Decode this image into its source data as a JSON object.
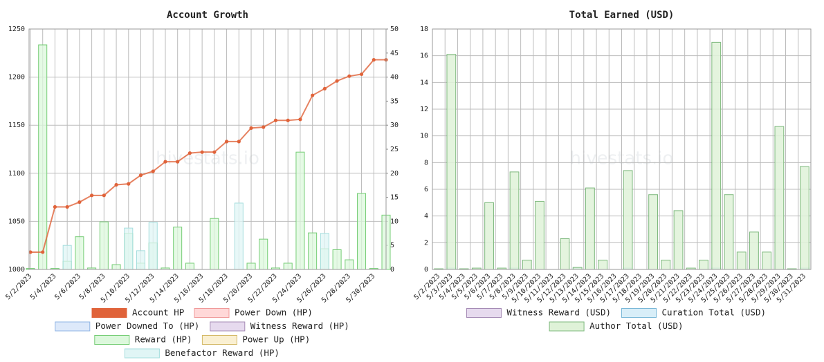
{
  "chart_data": [
    {
      "type": "line",
      "title": "Account Growth",
      "watermark": "hivestats.io",
      "categories": [
        "5/2/2023",
        null,
        "5/4/2023",
        null,
        "5/6/2023",
        null,
        "5/8/2023",
        null,
        "5/10/2023",
        null,
        "5/12/2023",
        null,
        "5/14/2023",
        null,
        "5/16/2023",
        null,
        "5/18/2023",
        null,
        "5/20/2023",
        null,
        "5/22/2023",
        null,
        "5/24/2023",
        null,
        "5/26/2023",
        null,
        "5/28/2023",
        null,
        "5/30/2023",
        null
      ],
      "ylim": [
        1000,
        1250
      ],
      "yticks": [
        1000,
        1050,
        1100,
        1150,
        1200,
        1250
      ],
      "y2lim": [
        0,
        50
      ],
      "y2ticks": [
        0,
        5,
        10,
        15,
        20,
        25,
        30,
        35,
        40,
        45,
        50
      ],
      "grid": true,
      "series": [
        {
          "name": "Account HP",
          "color": "#e0633a",
          "edge": "#e0633a",
          "values": [
            1018,
            1018,
            1065,
            1065,
            1070,
            1077,
            1077,
            1088,
            1089,
            1098,
            1102,
            1112,
            1112,
            1121,
            1122,
            1122,
            1133,
            1133,
            1147,
            1148,
            1155,
            1155,
            1156,
            1181,
            1188,
            1196,
            1201,
            1203,
            1218,
            1218
          ]
        },
        {
          "name": "Power Down (HP)",
          "type": "bar",
          "axis": "y2",
          "color": "#ffd8d8",
          "edge": "#f09a9a",
          "values": [
            0,
            0,
            0,
            0,
            0,
            0,
            0,
            0,
            0,
            0,
            0,
            0,
            0,
            0,
            0,
            0,
            0,
            0,
            0,
            0,
            0,
            0,
            0,
            0,
            0,
            0,
            0,
            0,
            0,
            0
          ]
        },
        {
          "name": "Power Downed To (HP)",
          "type": "bar",
          "axis": "y2",
          "color": "#dde9fa",
          "edge": "#8fb4e4",
          "values": [
            0,
            0,
            0,
            0,
            0,
            0,
            0,
            0,
            0,
            0,
            0,
            0,
            0,
            0,
            0,
            0,
            0,
            0,
            0,
            0,
            0,
            0,
            0,
            0,
            0,
            0,
            0,
            0,
            0,
            0
          ]
        },
        {
          "name": "Witness Reward (HP)",
          "type": "bar",
          "axis": "y2",
          "color": "#e6daee",
          "edge": "#a58bb5",
          "values": [
            0,
            0,
            0,
            0,
            0,
            0,
            0,
            0,
            0,
            0,
            0,
            0,
            0,
            0,
            0,
            0,
            0,
            0,
            0,
            0,
            0,
            0,
            0,
            0,
            0,
            0,
            0,
            0,
            0,
            0
          ]
        },
        {
          "name": "Reward (HP)",
          "type": "bar",
          "axis": "y2",
          "color": "#dcf8dc",
          "edge": "#74cc74",
          "values": [
            0.2,
            46.7,
            0.2,
            1.7,
            6.8,
            0.3,
            9.9,
            1,
            7.5,
            1.3,
            5.5,
            0.3,
            8.8,
            1.3,
            0,
            10.6,
            0,
            0,
            1.3,
            6.3,
            0.3,
            1.3,
            24.4,
            7.6,
            4.3,
            4.1,
            2,
            15.8,
            0.2,
            11.3
          ]
        },
        {
          "name": "Power Up (HP)",
          "type": "bar",
          "axis": "y2",
          "color": "#faf0d2",
          "edge": "#d3b865",
          "values": [
            0,
            0,
            0,
            0,
            0,
            0,
            0,
            0,
            0,
            0,
            0,
            0,
            0,
            0,
            0,
            0,
            0,
            0,
            0,
            0,
            0,
            0,
            0,
            0,
            0,
            0,
            0,
            0,
            0,
            0
          ]
        },
        {
          "name": "Benefactor Reward (HP)",
          "type": "bar",
          "axis": "y2",
          "color": "#e0f5f5",
          "edge": "#a6dede",
          "values": [
            0,
            0,
            0,
            5,
            0,
            0,
            0,
            0,
            8.6,
            3.9,
            9.8,
            0,
            0,
            0,
            0,
            0,
            0,
            13.8,
            0,
            0,
            0,
            0,
            0,
            0,
            7.5,
            0,
            0,
            0,
            0,
            0
          ]
        }
      ]
    },
    {
      "type": "bar",
      "title": "Total Earned (USD)",
      "watermark": "hivestats.io",
      "categories": [
        "5/2/2023",
        "5/3/2023",
        "5/4/2023",
        "5/5/2023",
        "5/6/2023",
        "5/7/2023",
        "5/8/2023",
        "5/9/2023",
        "5/10/2023",
        "5/11/2023",
        "5/12/2023",
        "5/13/2023",
        "5/14/2023",
        "5/15/2023",
        "5/16/2023",
        "5/17/2023",
        "5/18/2023",
        "5/19/2023",
        "5/20/2023",
        "5/21/2023",
        "5/22/2023",
        "5/23/2023",
        "5/24/2023",
        "5/25/2023",
        "5/26/2023",
        "5/27/2023",
        "5/28/2023",
        "5/29/2023",
        "5/30/2023",
        "5/31/2023"
      ],
      "ylim": [
        0,
        18
      ],
      "yticks": [
        0,
        2,
        4,
        6,
        8,
        10,
        12,
        14,
        16,
        18
      ],
      "grid": true,
      "series": [
        {
          "name": "Witness Reward (USD)",
          "color": "#e6daee",
          "edge": "#a58bb5",
          "values": [
            0,
            0,
            0,
            0,
            0,
            0,
            0,
            0,
            0,
            0,
            0,
            0,
            0,
            0,
            0,
            0,
            0,
            0,
            0,
            0,
            0,
            0,
            0,
            0,
            0,
            0,
            0,
            0,
            0,
            0
          ]
        },
        {
          "name": "Curation Total (USD)",
          "color": "#d8eef8",
          "edge": "#7ab8d8",
          "values": [
            0,
            0.1,
            0,
            0,
            0,
            0,
            0.1,
            0,
            0,
            0,
            0,
            0.1,
            0,
            0,
            0,
            0.1,
            0,
            0,
            0,
            0,
            0,
            0,
            0.1,
            0,
            0,
            0,
            0,
            0,
            0,
            0.1
          ]
        },
        {
          "name": "Author Total (USD)",
          "color": "#dff2d8",
          "edge": "#7cb87c",
          "values": [
            0.05,
            16.1,
            0.05,
            0.1,
            5,
            0.1,
            7.3,
            0.7,
            5.1,
            0,
            2.3,
            0.15,
            6.1,
            0.7,
            0,
            7.4,
            0,
            5.6,
            0.7,
            4.4,
            0.1,
            0.7,
            17,
            5.6,
            1.3,
            2.8,
            1.3,
            10.7,
            0.05,
            7.7
          ]
        }
      ]
    }
  ]
}
